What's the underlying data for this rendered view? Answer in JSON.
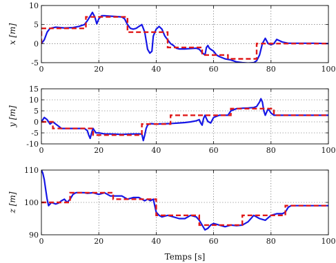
{
  "chart_data": [
    {
      "type": "line",
      "ylabel": "x  [m]",
      "xlim": [
        0,
        100
      ],
      "ylim": [
        -5,
        10
      ],
      "xticks": [
        "0",
        "20",
        "40",
        "60",
        "80",
        "100"
      ],
      "yticks": [
        "-5",
        "0",
        "5",
        "10"
      ],
      "grid": true,
      "series": [
        {
          "style": "solid",
          "color": "#1616e6",
          "x": [
            0,
            1,
            2,
            3,
            5,
            8,
            11,
            13,
            15,
            16,
            17,
            17.8,
            18.6,
            19.3,
            20,
            21,
            22,
            24,
            26,
            28,
            29,
            30,
            31,
            32,
            33,
            34,
            35,
            36,
            37,
            37.8,
            38.5,
            39,
            40,
            41,
            42,
            43,
            44,
            45,
            46,
            47,
            48,
            50,
            52,
            54,
            55,
            56,
            57,
            57.5,
            58,
            58.5,
            59,
            60,
            61,
            62,
            64,
            66,
            68,
            70,
            72,
            74,
            75,
            76,
            77,
            78,
            79,
            80,
            81,
            82,
            84,
            86,
            90,
            95,
            100
          ],
          "y": [
            0,
            1,
            3,
            4,
            4.3,
            4.1,
            4.2,
            4.5,
            5,
            6,
            7.2,
            8.2,
            7,
            5.2,
            6.5,
            7.3,
            7.3,
            7.2,
            7.1,
            7,
            6.5,
            5,
            4,
            3.8,
            4,
            4.5,
            5,
            3,
            -1.5,
            -2.5,
            -2,
            2,
            3.8,
            4.5,
            3.8,
            2,
            1,
            0,
            -0.5,
            -1.2,
            -1.4,
            -1.4,
            -1.3,
            -1.2,
            -1.5,
            -2.4,
            -3,
            -1,
            -0.5,
            -1.2,
            -1.5,
            -2,
            -3,
            -3.4,
            -4,
            -4.3,
            -4.8,
            -5,
            -5.1,
            -5,
            -4.5,
            -3,
            0,
            1.4,
            0,
            -0.3,
            0,
            1.1,
            0.4,
            0.1,
            0.1,
            0.1,
            0
          ]
        },
        {
          "style": "dashed",
          "color": "#e01818",
          "x": [
            0,
            0,
            15.5,
            15.5,
            30,
            30,
            44,
            44,
            56,
            56,
            65,
            65,
            75,
            75,
            100
          ],
          "y": [
            0,
            4,
            4,
            7,
            7,
            3,
            3,
            -1,
            -1,
            -3,
            -3,
            -4,
            -4,
            0,
            0
          ]
        }
      ]
    },
    {
      "type": "line",
      "ylabel": "y  [m]",
      "xlim": [
        0,
        100
      ],
      "ylim": [
        -10,
        15
      ],
      "xticks": [
        "0",
        "20",
        "40",
        "60",
        "80",
        "100"
      ],
      "yticks": [
        "-10",
        "-5",
        "0",
        "5",
        "10",
        "15"
      ],
      "grid": true,
      "series": [
        {
          "style": "solid",
          "color": "#1616e6",
          "x": [
            0,
            1,
            2,
            3,
            4,
            5,
            6,
            7,
            8,
            9,
            10,
            12,
            14,
            15,
            16,
            16.5,
            17,
            17.5,
            18,
            18.5,
            19,
            20,
            22,
            24,
            26,
            28,
            30,
            32,
            34,
            35,
            35.5,
            36,
            36.5,
            37,
            37.5,
            38,
            39,
            40,
            42,
            44,
            46,
            48,
            50,
            52,
            54,
            55,
            55.5,
            56,
            56.5,
            57,
            57.5,
            58,
            59,
            60,
            62,
            64,
            65,
            66,
            68,
            70,
            72,
            74,
            75,
            76,
            76.5,
            77,
            77.5,
            78,
            78.5,
            79,
            80,
            81,
            82,
            84,
            86,
            90,
            95,
            100
          ],
          "y": [
            0,
            2,
            1,
            -1,
            0,
            -1,
            -2,
            -3,
            -3,
            -3,
            -3,
            -3,
            -3,
            -3,
            -4,
            -6,
            -7.5,
            -5,
            -3,
            -4,
            -5,
            -5,
            -5.5,
            -5.5,
            -5.6,
            -5.7,
            -5.6,
            -5.5,
            -5.5,
            -5.5,
            -8.5,
            -6,
            -3,
            -1.5,
            -1,
            -0.8,
            -0.9,
            -1,
            -0.9,
            -0.8,
            -0.7,
            -0.5,
            -0.3,
            0,
            0.5,
            1,
            -0.5,
            -1.5,
            1.5,
            3,
            1.5,
            0.2,
            -0.5,
            2,
            3,
            3,
            3,
            5,
            6,
            6.2,
            6.3,
            6.5,
            7,
            9,
            10.5,
            9,
            5,
            3,
            4.5,
            6,
            4,
            3,
            3,
            3,
            3,
            3,
            3,
            3
          ]
        },
        {
          "style": "dashed",
          "color": "#e01818",
          "x": [
            0,
            0,
            4,
            4,
            18,
            18,
            35,
            35,
            45,
            45,
            56,
            56,
            66,
            66,
            81,
            81,
            100
          ],
          "y": [
            0,
            0,
            0,
            -3,
            -3,
            -6,
            -6,
            -1,
            -1,
            3,
            3,
            3,
            3,
            6,
            6,
            3,
            3
          ]
        }
      ]
    },
    {
      "type": "line",
      "ylabel": "z  [m]",
      "xlabel": "Temps [s]",
      "xlim": [
        0,
        100
      ],
      "ylim": [
        90,
        110
      ],
      "xticks": [
        "0",
        "20",
        "40",
        "60",
        "80",
        "100"
      ],
      "yticks": [
        "90",
        "100",
        "110"
      ],
      "grid": true,
      "series": [
        {
          "style": "solid",
          "color": "#1616e6",
          "x": [
            0,
            0.5,
            1,
            1.5,
            2,
            2.5,
            3,
            3.5,
            4,
            5,
            6,
            7,
            8,
            9,
            10,
            11,
            12,
            14,
            15,
            16,
            18,
            20,
            22,
            24,
            26,
            28,
            30,
            32,
            34,
            35,
            36,
            37,
            38,
            39,
            40,
            41,
            42,
            44,
            46,
            48,
            50,
            52,
            54,
            55,
            56,
            57,
            58,
            59,
            60,
            62,
            64,
            66,
            68,
            70,
            72,
            74,
            76,
            78,
            80,
            82,
            84,
            85,
            86,
            87,
            88,
            90,
            95,
            100
          ],
          "y": [
            110,
            109,
            107,
            104,
            101,
            99,
            99.5,
            100,
            99.8,
            99.5,
            99.8,
            100.5,
            101,
            100,
            101,
            102.5,
            103,
            103,
            103,
            102.8,
            103,
            102.5,
            103,
            102,
            102,
            102,
            101,
            101.5,
            101.5,
            101,
            100.5,
            101,
            100.5,
            101,
            97,
            96,
            95.5,
            96,
            95.5,
            95,
            95,
            96,
            95.5,
            94.5,
            93,
            91.5,
            92,
            93,
            93.5,
            93,
            92.5,
            93,
            92.8,
            93,
            94,
            96,
            95,
            94.5,
            96,
            96.5,
            96.5,
            97,
            98.5,
            99,
            99,
            99,
            99,
            99
          ]
        },
        {
          "style": "dashed",
          "color": "#e01818",
          "x": [
            0,
            0,
            10,
            10,
            25,
            25,
            40,
            40,
            55,
            55,
            70,
            70,
            85,
            85,
            100
          ],
          "y": [
            100,
            100,
            100,
            103,
            103,
            101,
            101,
            96,
            96,
            93,
            93,
            96,
            96,
            99,
            99
          ]
        }
      ]
    }
  ]
}
